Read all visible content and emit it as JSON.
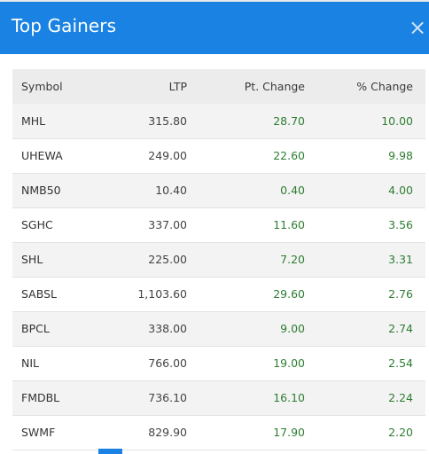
{
  "modal": {
    "title": "Top Gainers",
    "close_label": "×"
  },
  "table": {
    "headers": [
      "Symbol",
      "LTP",
      "Pt. Change",
      "% Change"
    ],
    "rows": [
      {
        "symbol": "MHL",
        "ltp": "315.80",
        "pt_change": "28.70",
        "pct_change": "10.00"
      },
      {
        "symbol": "UHEWA",
        "ltp": "249.00",
        "pt_change": "22.60",
        "pct_change": "9.98"
      },
      {
        "symbol": "NMB50",
        "ltp": "10.40",
        "pt_change": "0.40",
        "pct_change": "4.00"
      },
      {
        "symbol": "SGHC",
        "ltp": "337.00",
        "pt_change": "11.60",
        "pct_change": "3.56"
      },
      {
        "symbol": "SHL",
        "ltp": "225.00",
        "pt_change": "7.20",
        "pct_change": "3.31"
      },
      {
        "symbol": "SABSL",
        "ltp": "1,103.60",
        "pt_change": "29.60",
        "pct_change": "2.76"
      },
      {
        "symbol": "BPCL",
        "ltp": "338.00",
        "pt_change": "9.00",
        "pct_change": "2.74"
      },
      {
        "symbol": "NIL",
        "ltp": "766.00",
        "pt_change": "19.00",
        "pct_change": "2.54"
      },
      {
        "symbol": "FMDBL",
        "ltp": "736.10",
        "pt_change": "16.10",
        "pct_change": "2.24"
      },
      {
        "symbol": "SWMF",
        "ltp": "829.90",
        "pt_change": "17.90",
        "pct_change": "2.20"
      }
    ]
  },
  "colors": {
    "header_bg": "#1a82e2",
    "positive": "#2e7d32",
    "row_alt": "#f3f3f3",
    "table_head_bg": "#ececec"
  },
  "icons": {
    "close": "close-icon"
  }
}
